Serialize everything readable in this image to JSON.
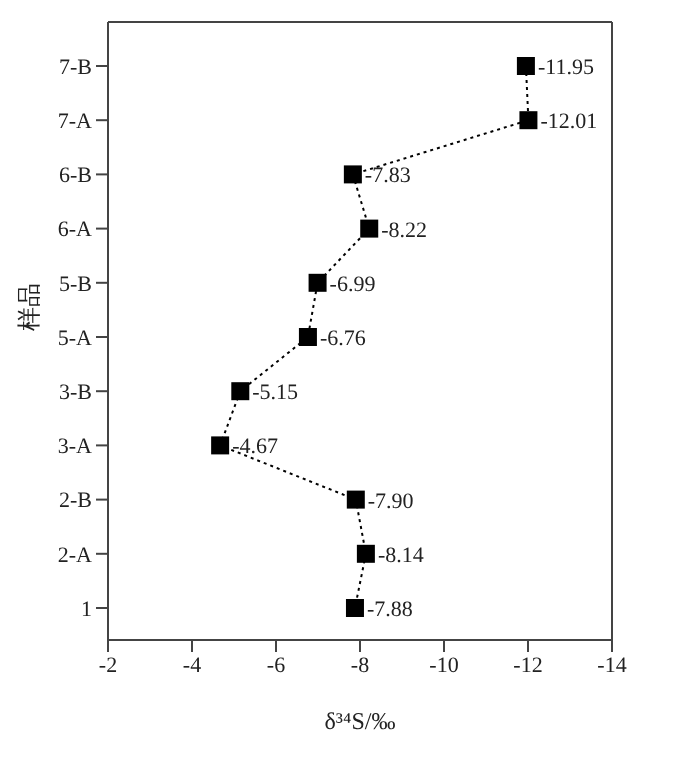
{
  "chart_data": {
    "type": "line",
    "orientation": "horizontal",
    "xlabel": "δ³⁴S/‰",
    "ylabel": "样品",
    "categories": [
      "7-B",
      "7-A",
      "6-B",
      "6-A",
      "5-B",
      "5-A",
      "3-B",
      "3-A",
      "2-B",
      "2-A",
      "1"
    ],
    "series": [
      {
        "color": "#000000",
        "values": [
          -11.95,
          -12.01,
          -7.83,
          -8.22,
          -6.99,
          -6.76,
          -5.15,
          -4.67,
          -7.9,
          -8.14,
          -7.88
        ],
        "value_labels": [
          "-11.95",
          "-12.01",
          "-7.83",
          "-8.22",
          "-6.99",
          "-6.76",
          "-5.15",
          "-4.67",
          "-7.90",
          "-8.14",
          "-7.88"
        ]
      }
    ],
    "xlim": [
      -2,
      -14
    ],
    "xticks": [
      -2,
      -4,
      -6,
      -8,
      -10,
      -12,
      -14
    ],
    "marker": "square",
    "line_style": "dotted"
  }
}
